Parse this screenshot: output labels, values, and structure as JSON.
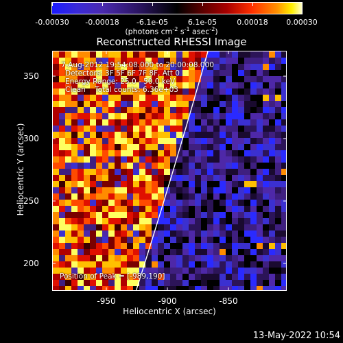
{
  "colorbar": {
    "ticks": [
      "-0.00030",
      "-0.00018",
      "-6.1e-05",
      "6.1e-05",
      "0.00018",
      "0.00030"
    ],
    "units_main": "(photons cm",
    "units_exp1": "-2",
    "units_mid": " s",
    "units_exp2": "-1",
    "units_mid2": " asec",
    "units_exp3": "-2",
    "units_end": ")"
  },
  "title": "Reconstructed RHESSI Image",
  "info": {
    "line1": "7-Aug-2012 19:54:08.000 to 20:00:08.000",
    "line2": "Detectors: 3F 5F 6F 7F 8F, Att 0",
    "line3": "Energy Range: 25.0 - 50.0 keV",
    "line4": "Clean    Total counts: 6.36e+03",
    "peak": "Position of Peak = [-989,190]"
  },
  "axes": {
    "xlabel": "Heliocentric X (arcsec)",
    "ylabel": "Heliocentric Y (arcsec)",
    "xticks": [
      "-950",
      "-900",
      "-850"
    ],
    "yticks": [
      "350",
      "300",
      "250",
      "200"
    ]
  },
  "datestamp": "13-May-2022 10:54",
  "colors": {
    "background": "#000000",
    "limb": "#ffffff",
    "text": "#ffffff"
  }
}
